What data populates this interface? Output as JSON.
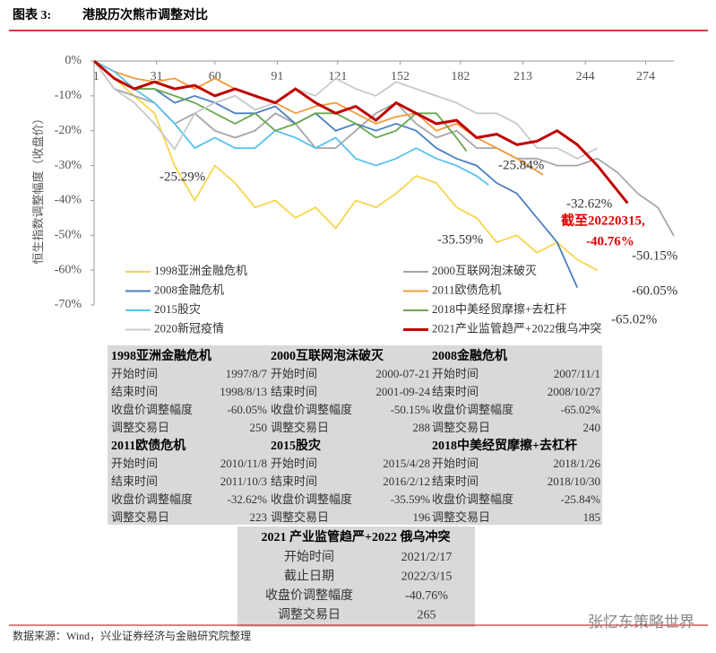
{
  "header": {
    "figure": "图表 3:",
    "title": "港股历次熊市调整对比"
  },
  "chart_data": {
    "type": "line",
    "ylabel": "恒生指数调整幅度（收盘价）",
    "xlim": [
      0,
      288
    ],
    "xticks": [
      1,
      31,
      60,
      91,
      121,
      152,
      182,
      213,
      244,
      274
    ],
    "ylim": [
      -70,
      0
    ],
    "yticks": [
      {
        "value": 0,
        "label": "0%"
      },
      {
        "value": -10,
        "label": "-10%"
      },
      {
        "value": -20,
        "label": "-20%"
      },
      {
        "value": -30,
        "label": "-30%"
      },
      {
        "value": -40,
        "label": "-40%"
      },
      {
        "value": -50,
        "label": "-50%"
      },
      {
        "value": -60,
        "label": "-60%"
      },
      {
        "value": -70,
        "label": "-70%"
      }
    ],
    "grid": false,
    "legend": "lower-left",
    "series": [
      {
        "name": "1998亚洲金融危机",
        "color": "#f7d54a",
        "x": [
          0,
          10,
          20,
          30,
          40,
          50,
          60,
          70,
          80,
          90,
          100,
          110,
          120,
          130,
          140,
          150,
          160,
          170,
          180,
          190,
          200,
          210,
          220,
          230,
          240,
          250
        ],
        "values": [
          0,
          -5,
          -10,
          -15,
          -30,
          -40,
          -30,
          -35,
          -42,
          -40,
          -45,
          -42,
          -48,
          -40,
          -42,
          -38,
          -33,
          -35,
          -42,
          -45,
          -52,
          -50,
          -55,
          -52,
          -57,
          -60.05
        ]
      },
      {
        "name": "2000互联网泡沫破灭",
        "color": "#a6a6a6",
        "x": [
          0,
          10,
          20,
          30,
          40,
          50,
          60,
          70,
          80,
          90,
          100,
          110,
          120,
          130,
          140,
          150,
          160,
          170,
          180,
          190,
          200,
          210,
          220,
          230,
          240,
          250,
          260,
          270,
          280,
          288
        ],
        "values": [
          0,
          -8,
          -10,
          -12,
          -18,
          -15,
          -20,
          -22,
          -20,
          -15,
          -18,
          -25,
          -25,
          -20,
          -15,
          -12,
          -18,
          -22,
          -20,
          -25,
          -25,
          -28,
          -28,
          -30,
          -30,
          -28,
          -32,
          -38,
          -42,
          -50.15
        ]
      },
      {
        "name": "2008金融危机",
        "color": "#4a7fc1",
        "x": [
          0,
          10,
          20,
          30,
          40,
          50,
          60,
          70,
          80,
          90,
          100,
          110,
          120,
          130,
          140,
          150,
          160,
          170,
          180,
          190,
          200,
          210,
          220,
          230,
          240
        ],
        "values": [
          0,
          -5,
          -8,
          -8,
          -12,
          -10,
          -12,
          -15,
          -15,
          -13,
          -18,
          -15,
          -20,
          -18,
          -20,
          -18,
          -20,
          -25,
          -28,
          -30,
          -35,
          -38,
          -45,
          -52,
          -65.02
        ]
      },
      {
        "name": "2011欧债危机",
        "color": "#f39b3c",
        "x": [
          0,
          10,
          20,
          30,
          40,
          50,
          60,
          70,
          80,
          90,
          100,
          110,
          120,
          130,
          140,
          150,
          160,
          170,
          180,
          190,
          200,
          210,
          223
        ],
        "values": [
          0,
          -3,
          -5,
          -6,
          -5,
          -8,
          -5,
          -8,
          -10,
          -12,
          -15,
          -13,
          -12,
          -15,
          -18,
          -16,
          -15,
          -20,
          -18,
          -22,
          -25,
          -28,
          -32.62
        ]
      },
      {
        "name": "2015股灾",
        "color": "#59c2f0",
        "x": [
          0,
          10,
          20,
          30,
          40,
          50,
          60,
          70,
          80,
          90,
          100,
          110,
          120,
          130,
          140,
          150,
          160,
          170,
          180,
          190,
          196
        ],
        "values": [
          0,
          -3,
          -8,
          -12,
          -18,
          -25,
          -22,
          -25,
          -25,
          -20,
          -22,
          -25,
          -22,
          -28,
          -30,
          -28,
          -25,
          -28,
          -30,
          -33,
          -35.59
        ]
      },
      {
        "name": "2018中美经贸摩擦+去杠杆",
        "color": "#6aa84f",
        "x": [
          0,
          10,
          20,
          30,
          40,
          50,
          60,
          70,
          80,
          90,
          100,
          110,
          120,
          130,
          140,
          150,
          160,
          170,
          180,
          185
        ],
        "values": [
          0,
          -5,
          -8,
          -8,
          -10,
          -12,
          -15,
          -18,
          -15,
          -20,
          -18,
          -15,
          -15,
          -18,
          -22,
          -20,
          -15,
          -15,
          -22,
          -25.84
        ]
      },
      {
        "name": "2020新冠疫情",
        "color": "#c9c9c9",
        "x": [
          0,
          10,
          20,
          30,
          40,
          50,
          60,
          70,
          80,
          90,
          100,
          110,
          120,
          130,
          140,
          150,
          160,
          170,
          180,
          190,
          200,
          210,
          220,
          230,
          240,
          250
        ],
        "values": [
          0,
          -8,
          -12,
          -18,
          -25.29,
          -15,
          -12,
          -10,
          -14,
          -12,
          -8,
          -10,
          -5,
          -8,
          -10,
          -6,
          -8,
          -10,
          -12,
          -15,
          -15,
          -18,
          -25,
          -25,
          -28,
          -25
        ]
      },
      {
        "name": "2021产业监管趋严+2022俄乌冲突",
        "color": "#c00000",
        "x": [
          0,
          10,
          20,
          30,
          40,
          50,
          60,
          70,
          80,
          90,
          100,
          110,
          120,
          130,
          140,
          150,
          160,
          170,
          180,
          190,
          200,
          210,
          220,
          230,
          240,
          250,
          265
        ],
        "values": [
          0,
          -5,
          -8,
          -6,
          -8,
          -7,
          -10,
          -8,
          -10,
          -12,
          -8,
          -12,
          -15,
          -13,
          -17,
          -12,
          -15,
          -18,
          -17,
          -22,
          -21,
          -24,
          -23,
          -20,
          -24,
          -30,
          -40.76
        ]
      }
    ],
    "annotations": [
      "-25.29%",
      "-25.84%",
      "-32.62%",
      "-35.59%",
      "-50.15%",
      "-60.05%",
      "-65.02%",
      "截至20220315,",
      "-40.76%"
    ]
  },
  "tables": {
    "top": [
      {
        "title": "1998亚洲金融危机",
        "rows": [
          [
            "开始时间",
            "1997/8/7"
          ],
          [
            "结束时间",
            "1998/8/13"
          ],
          [
            "收盘价调整幅度",
            "-60.05%"
          ],
          [
            "调整交易日",
            "250"
          ]
        ]
      },
      {
        "title": "2000互联网泡沫破灭",
        "rows": [
          [
            "开始时间",
            "2000-07-21"
          ],
          [
            "结束时间",
            "2001-09-24"
          ],
          [
            "收盘价调整幅度",
            "-50.15%"
          ],
          [
            "调整交易日",
            "288"
          ]
        ]
      },
      {
        "title": "2008金融危机",
        "rows": [
          [
            "开始时间",
            "2007/11/1"
          ],
          [
            "结束时间",
            "2008/10/27"
          ],
          [
            "收盘价调整幅度",
            "-65.02%"
          ],
          [
            "调整交易日",
            "240"
          ]
        ]
      },
      {
        "title": "2011欧债危机",
        "rows": [
          [
            "开始时间",
            "2010/11/8"
          ],
          [
            "结束时间",
            "2011/10/3"
          ],
          [
            "收盘价调整幅度",
            "-32.62%"
          ],
          [
            "调整交易日",
            "223"
          ]
        ]
      },
      {
        "title": "2015股灾",
        "rows": [
          [
            "开始时间",
            "2015/4/28"
          ],
          [
            "结束时间",
            "2016/2/12"
          ],
          [
            "收盘价调整幅度",
            "-35.59%"
          ],
          [
            "调整交易日",
            "196"
          ]
        ]
      },
      {
        "title": "2018中美经贸摩擦+去杠杆",
        "rows": [
          [
            "开始时间",
            "2018/1/26"
          ],
          [
            "结束时间",
            "2018/10/30"
          ],
          [
            "收盘价调整幅度",
            "-25.84%"
          ],
          [
            "调整交易日",
            "185"
          ]
        ]
      }
    ],
    "bottom": {
      "title": "2021 产业监管趋严+2022 俄乌冲突",
      "rows": [
        [
          "开始时间",
          "2021/2/17"
        ],
        [
          "截止日期",
          "2022/3/15"
        ],
        [
          "收盘价调整幅度",
          "-40.76%"
        ],
        [
          "调整交易日",
          "265"
        ]
      ]
    }
  },
  "source": "数据来源：Wind，兴业证券经济与金融研究院整理",
  "watermark": "张忆东策略世界"
}
